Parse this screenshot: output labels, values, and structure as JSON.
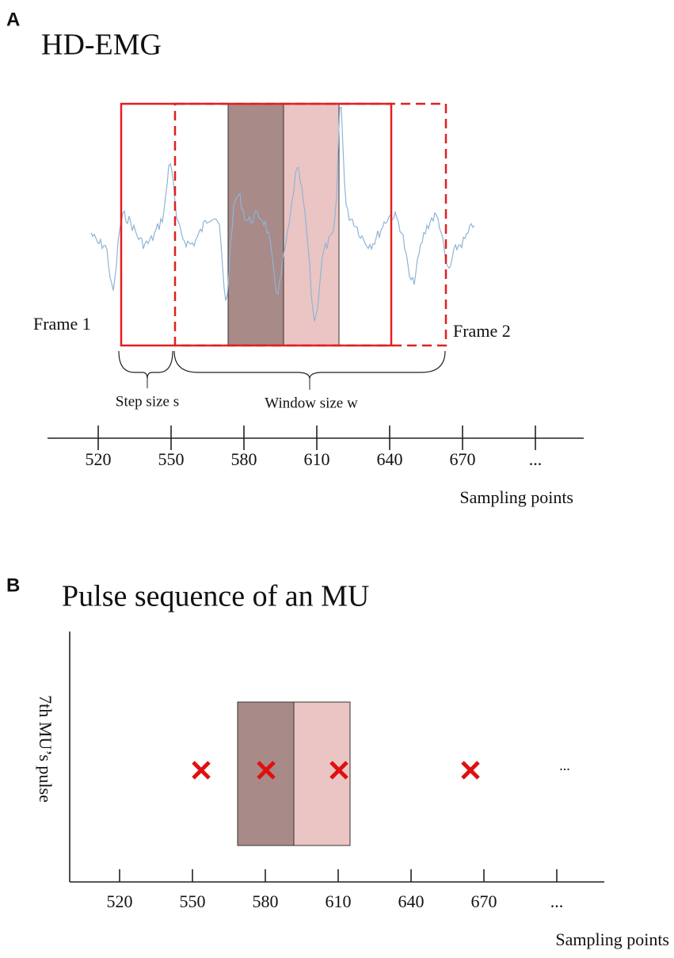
{
  "panel_a": {
    "letter": "A",
    "title": "HD-EMG",
    "frame_1": "Frame 1",
    "frame_2": "Frame 2",
    "step_label": "Step size s",
    "window_label": "Window size w",
    "xticks": [
      520,
      550,
      580,
      610,
      640,
      670
    ],
    "ellipsis": "...",
    "x_label": "Sampling points"
  },
  "panel_b": {
    "letter": "B",
    "title": "Pulse sequence of an MU",
    "y_label": "7th MU’s pulse",
    "xticks": [
      520,
      550,
      580,
      610,
      640,
      670
    ],
    "ellipsis": "...",
    "x_label": "Sampling points",
    "dots": "..."
  }
}
